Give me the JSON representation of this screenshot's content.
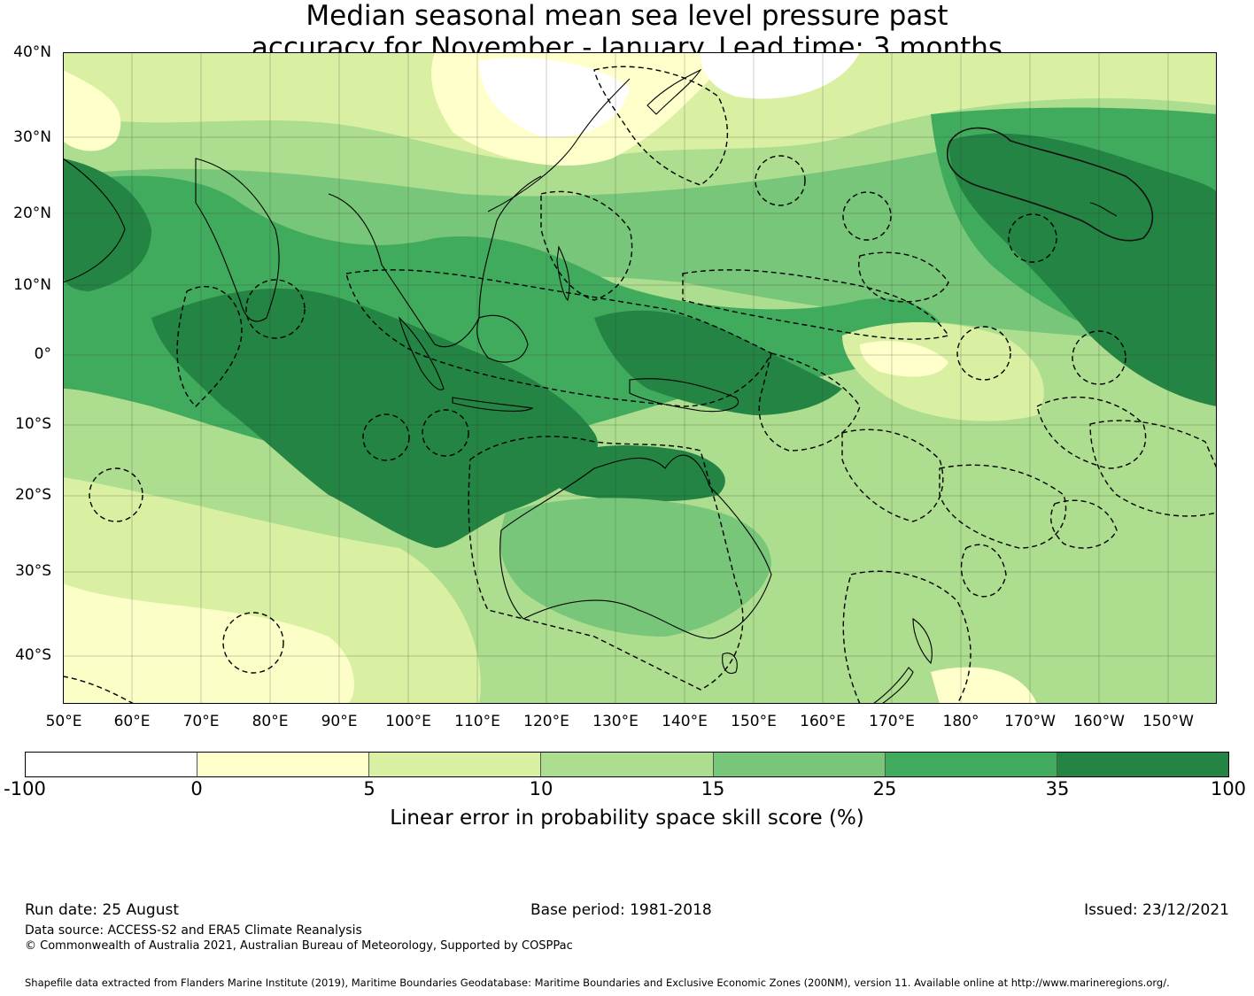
{
  "title": {
    "line1": "Median seasonal mean sea level pressure past",
    "line2": "accuracy for November - January. Lead time: 3 months"
  },
  "map": {
    "lat_labels": [
      "40°N",
      "30°N",
      "20°N",
      "10°N",
      "0°",
      "10°S",
      "20°S",
      "30°S",
      "40°S"
    ],
    "lon_labels": [
      "50°E",
      "60°E",
      "70°E",
      "80°E",
      "90°E",
      "100°E",
      "110°E",
      "120°E",
      "130°E",
      "140°E",
      "150°E",
      "160°E",
      "170°E",
      "180°",
      "170°W",
      "160°W",
      "150°W"
    ]
  },
  "colorbar": {
    "ticks": [
      "-100",
      "0",
      "5",
      "10",
      "15",
      "25",
      "35",
      "100"
    ],
    "colors": [
      "#ffffff",
      "#ffffcc",
      "#d9f0a3",
      "#addd8e",
      "#78c679",
      "#41ab5d",
      "#238443"
    ],
    "label": "Linear error in probability space skill score (%)"
  },
  "footer": {
    "run_date": "Run date: 25 August",
    "base_period": "Base period: 1981-2018",
    "issued": "Issued: 23/12/2021",
    "data_source": "Data source: ACCESS-S2 and ERA5 Climate Reanalysis",
    "copyright": "© Commonwealth of Australia 2021, Australian Bureau of Meteorology, Supported by COSPPac",
    "shapefile": "Shapefile data extracted from Flanders Marine Institute (2019), Maritime Boundaries Geodatabase: Maritime Boundaries and Exclusive Economic Zones (200NM), version 11. Available online at http://www.marineregions.org/."
  }
}
